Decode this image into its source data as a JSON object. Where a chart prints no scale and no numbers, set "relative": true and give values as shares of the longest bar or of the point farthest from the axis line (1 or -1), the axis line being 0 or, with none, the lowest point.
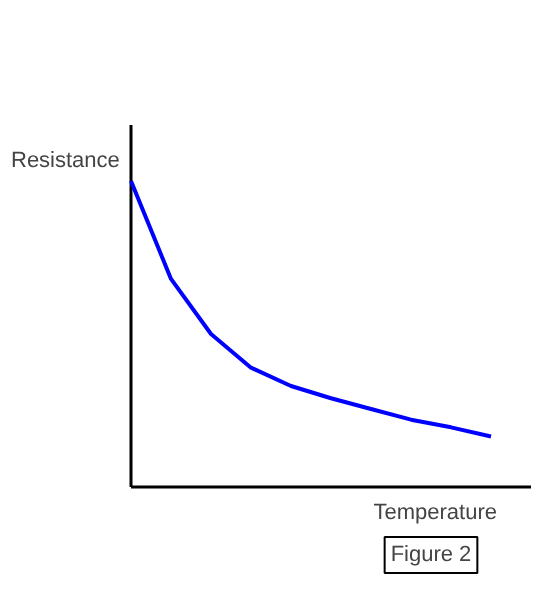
{
  "chart_data": {
    "type": "line",
    "relative": true,
    "xlabel": "Temperature",
    "ylabel": "Resistance",
    "annotations": [
      "Figure 2"
    ],
    "categories": [
      null,
      null,
      null,
      null,
      null,
      null,
      null,
      null,
      null,
      null
    ],
    "series": [
      {
        "color": "#0000ff",
        "values": [
          1.0,
          0.68,
          0.5,
          0.39,
          0.33,
          0.29,
          0.255,
          0.22,
          0.195,
          0.165
        ]
      }
    ]
  }
}
